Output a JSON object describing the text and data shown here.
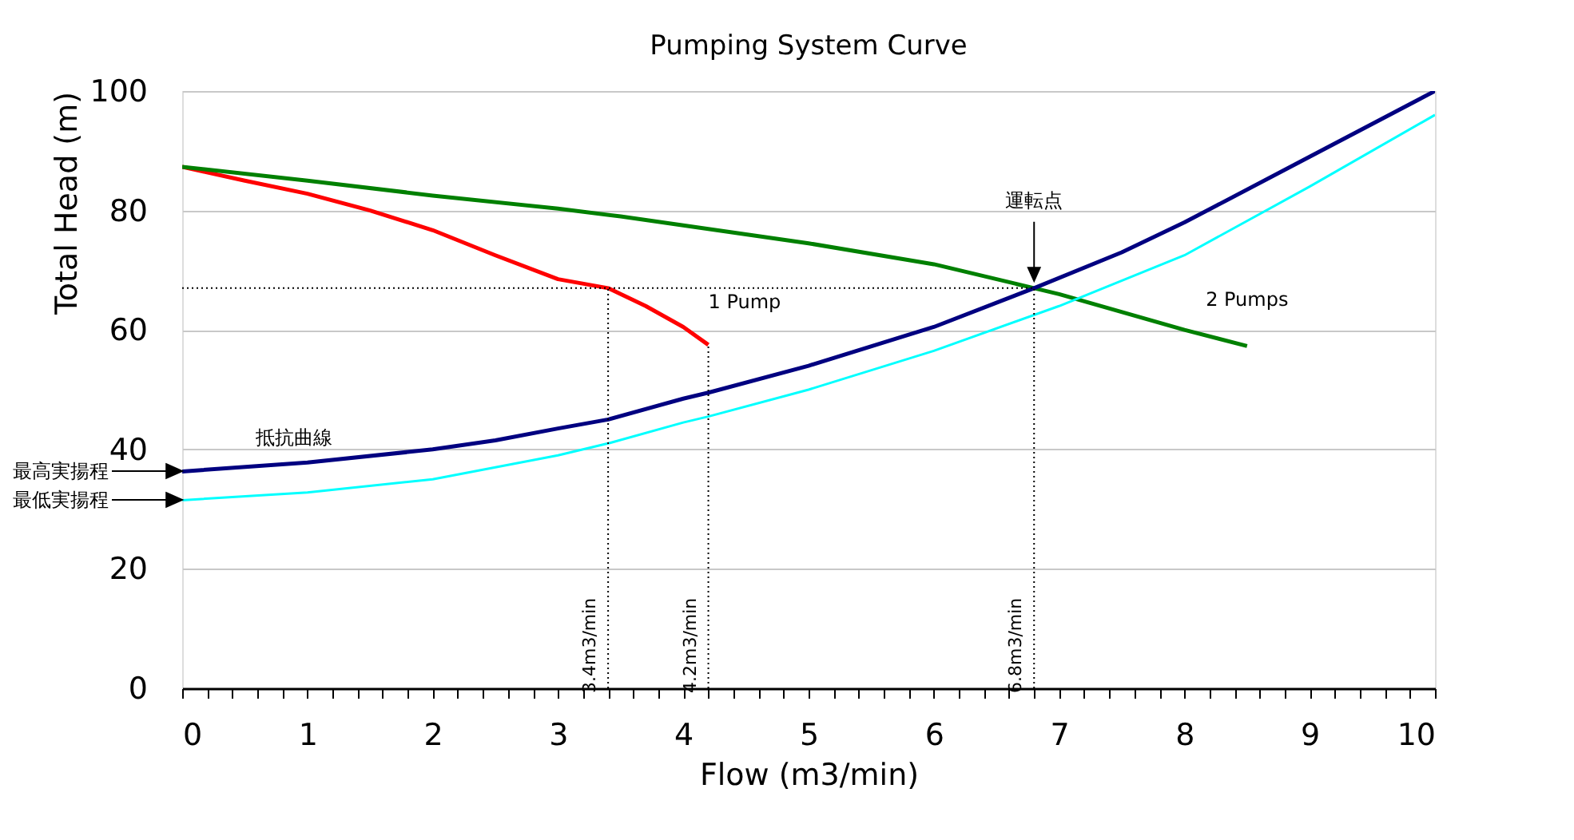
{
  "chart_data": {
    "type": "line",
    "title": "Pumping System Curve",
    "xlabel": "Flow (m3/min)",
    "ylabel": "Total Head (m)",
    "xlim": [
      0,
      10
    ],
    "ylim": [
      0,
      100
    ],
    "xticks": [
      0,
      {
        "value": 0.2,
        "label": null
      },
      {
        "value": 0.4,
        "label": null
      },
      {
        "value": 0.6,
        "label": null
      },
      {
        "value": 0.8,
        "label": null
      },
      1,
      {
        "value": 1.2,
        "label": null
      },
      {
        "value": 1.4,
        "label": null
      },
      {
        "value": 1.6,
        "label": null
      },
      {
        "value": 1.8,
        "label": null
      },
      2,
      {
        "value": 2.2,
        "label": null
      },
      {
        "value": 2.4,
        "label": null
      },
      {
        "value": 2.6,
        "label": null
      },
      {
        "value": 2.8,
        "label": null
      },
      3,
      {
        "value": 3.2,
        "label": null
      },
      {
        "value": 3.4,
        "label": null
      },
      {
        "value": 3.6,
        "label": null
      },
      {
        "value": 3.8,
        "label": null
      },
      4,
      {
        "value": 4.2,
        "label": null
      },
      {
        "value": 4.4,
        "label": null
      },
      {
        "value": 4.6,
        "label": null
      },
      {
        "value": 4.8,
        "label": null
      },
      5,
      {
        "value": 5.2,
        "label": null
      },
      {
        "value": 5.4,
        "label": null
      },
      {
        "value": 5.6,
        "label": null
      },
      {
        "value": 5.8,
        "label": null
      },
      6,
      {
        "value": 6.2,
        "label": null
      },
      {
        "value": 6.4,
        "label": null
      },
      {
        "value": 6.6,
        "label": null
      },
      {
        "value": 6.8,
        "label": null
      },
      7,
      {
        "value": 7.2,
        "label": null
      },
      {
        "value": 7.4,
        "label": null
      },
      {
        "value": 7.6,
        "label": null
      },
      {
        "value": 7.8,
        "label": null
      },
      8,
      {
        "value": 8.2,
        "label": null
      },
      {
        "value": 8.4,
        "label": null
      },
      {
        "value": 8.6,
        "label": null
      },
      {
        "value": 8.8,
        "label": null
      },
      9,
      {
        "value": 9.2,
        "label": null
      },
      {
        "value": 9.4,
        "label": null
      },
      {
        "value": 9.6,
        "label": null
      },
      {
        "value": 9.8,
        "label": null
      },
      10
    ],
    "yticks": [
      0,
      20,
      40,
      60,
      80,
      100
    ],
    "grid": "y",
    "legend": false,
    "marker": "none",
    "line_style": "solid",
    "series": [
      {
        "name": "1 Pump",
        "color": "#ff0000",
        "x": [
          0,
          0.5,
          1,
          1.5,
          2,
          2.5,
          3,
          3.4,
          3.7,
          4,
          4.2
        ],
        "values": [
          87.3,
          85,
          82.8,
          80,
          76.7,
          72.5,
          68.5,
          67,
          64,
          60.5,
          57.5
        ]
      },
      {
        "name": "2 Pumps",
        "color": "#008000",
        "x": [
          0,
          1,
          2,
          3,
          3.5,
          4,
          5,
          6,
          6.8,
          7,
          8,
          8.5
        ],
        "values": [
          87.3,
          85,
          82.5,
          80.3,
          79,
          77.5,
          74.5,
          71,
          67,
          66,
          60,
          57.3
        ]
      },
      {
        "name": "抵抗曲線",
        "color": "#000080",
        "x": [
          0,
          1,
          2,
          2.5,
          3,
          3.4,
          4,
          4.2,
          5,
          6,
          6.8,
          7.5,
          8,
          9,
          10
        ],
        "values": [
          36.3,
          37.8,
          40,
          41.5,
          43.5,
          45,
          48.5,
          49.5,
          54,
          60.5,
          67,
          73,
          78,
          89,
          100
        ]
      },
      {
        "color": "#00ffff",
        "x": [
          0,
          1,
          2,
          2.5,
          3,
          3.4,
          4,
          4.2,
          5,
          6,
          7,
          8,
          9,
          10
        ],
        "values": [
          31.5,
          32.8,
          35,
          37,
          39,
          41,
          44.5,
          45.5,
          50,
          56.5,
          64,
          72.5,
          84,
          96
        ]
      },
      {
        "color": "#000000",
        "line_style": "dotted",
        "x": [
          0,
          6.8
        ],
        "values": [
          67,
          67
        ]
      },
      {
        "color": "#000000",
        "line_style": "dotted",
        "x": [
          3.4,
          3.4
        ],
        "values": [
          0,
          67
        ]
      },
      {
        "color": "#000000",
        "line_style": "dotted",
        "x": [
          4.2,
          4.2
        ],
        "values": [
          0,
          57.5
        ]
      },
      {
        "color": "#000000",
        "line_style": "dotted",
        "x": [
          6.8,
          6.8
        ],
        "values": [
          0,
          67
        ]
      }
    ],
    "annotations": [
      {
        "text": "運転点",
        "x": 6.8,
        "y": 67
      },
      "最高実揚程",
      "最低実揚程",
      {
        "text": "3.4m3/min",
        "x": 3.4,
        "y": 0
      },
      {
        "text": "4.2m3/min",
        "x": 4.2,
        "y": 0
      },
      {
        "text": "6.8m3/min",
        "x": 6.8,
        "y": 0
      }
    ]
  }
}
